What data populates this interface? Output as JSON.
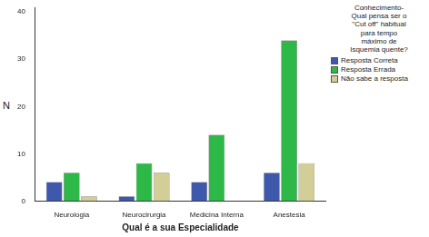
{
  "chart_data": {
    "type": "bar",
    "x_label": "Qual é a sua Especialidade",
    "y_label": "N",
    "legend_title": "Conhecimento-\nQual pensa ser o\n\"Cut off\" habitual\npara tempo\nmáximo de\nIsquemia quente?",
    "legend": "right",
    "grid": false,
    "categories": [
      "Neurologia",
      "Neurocirurgia",
      "Medicina Interna",
      "Anestesia"
    ],
    "series": [
      {
        "name": "Resposta Correta",
        "color": "#3e58ac",
        "values": [
          4,
          1,
          4,
          6
        ]
      },
      {
        "name": "Resposta Errada",
        "color": "#2eb848",
        "values": [
          6,
          8,
          14,
          34
        ]
      },
      {
        "name": "Não sabe a resposta",
        "color": "#d3ce97",
        "values": [
          1,
          6,
          0,
          8
        ]
      }
    ],
    "ylim": [
      0,
      41
    ],
    "yticks": [
      0,
      10,
      20,
      30,
      40
    ]
  }
}
